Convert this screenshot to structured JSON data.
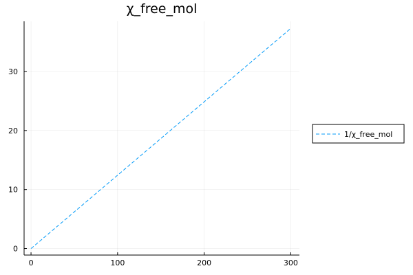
{
  "chart_data": {
    "type": "line",
    "title": "χ_free_mol",
    "xlabel": "",
    "ylabel": "",
    "xlim": [
      -8,
      310
    ],
    "ylim": [
      -1.1,
      38.5
    ],
    "xticks": [
      0,
      100,
      200,
      300
    ],
    "yticks": [
      0,
      10,
      20,
      30
    ],
    "grid": true,
    "legend_position": "outer-right",
    "series": [
      {
        "name": "1/χ_free_mol",
        "color": "#009af9",
        "line_style": "dashed",
        "x": [
          0,
          300
        ],
        "y": [
          0.0,
          37.3
        ]
      }
    ]
  }
}
